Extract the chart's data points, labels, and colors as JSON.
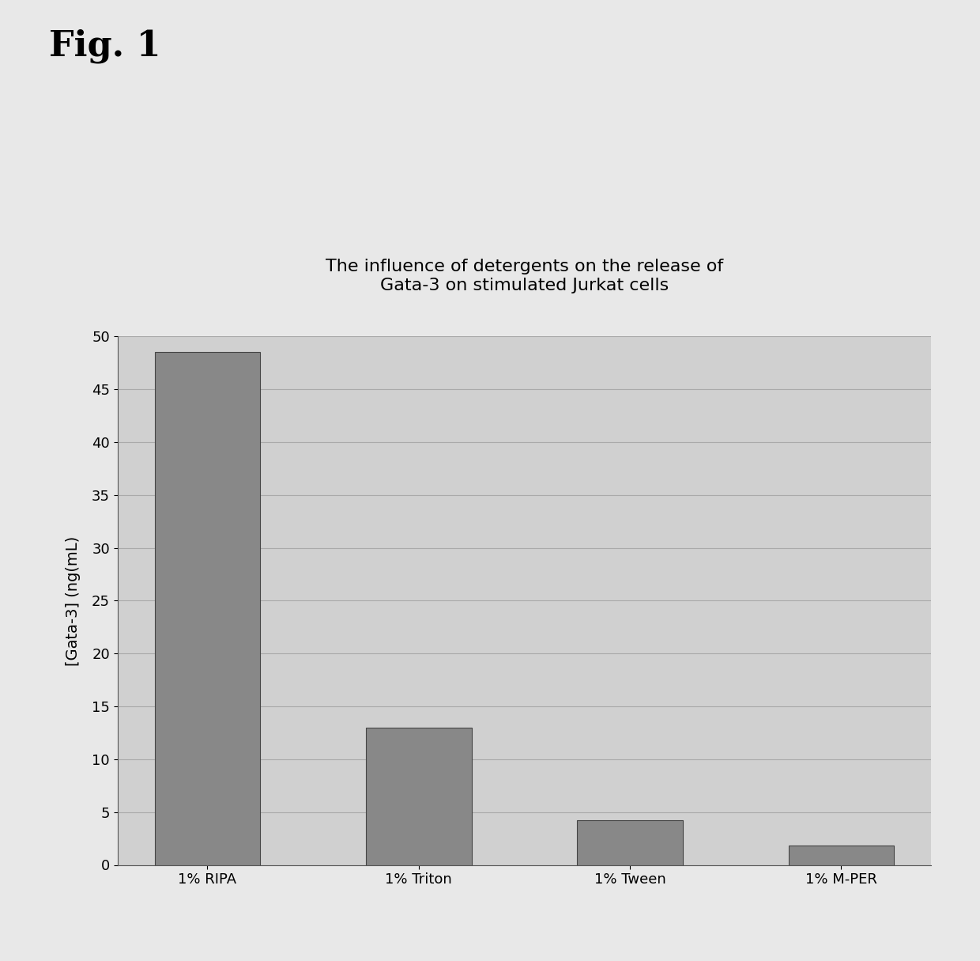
{
  "title_line1": "The influence of detergents on the release of",
  "title_line2": "Gata-3 on stimulated Jurkat cells",
  "fig_label": "Fig. 1",
  "categories": [
    "1% RIPA",
    "1% Triton",
    "1% Tween",
    "1% M-PER"
  ],
  "values": [
    48.5,
    13.0,
    4.2,
    1.8
  ],
  "bar_color": "#888888",
  "bar_edge_color": "#444444",
  "ylabel": "[Gata-3] (ng(mL)",
  "ylim": [
    0,
    50
  ],
  "yticks": [
    0,
    5,
    10,
    15,
    20,
    25,
    30,
    35,
    40,
    45,
    50
  ],
  "background_color": "#e8e8e8",
  "plot_bg_color": "#d0d0d0",
  "grid_color": "#aaaaaa",
  "title_fontsize": 16,
  "axis_label_fontsize": 14,
  "tick_fontsize": 13,
  "fig_label_fontsize": 32
}
